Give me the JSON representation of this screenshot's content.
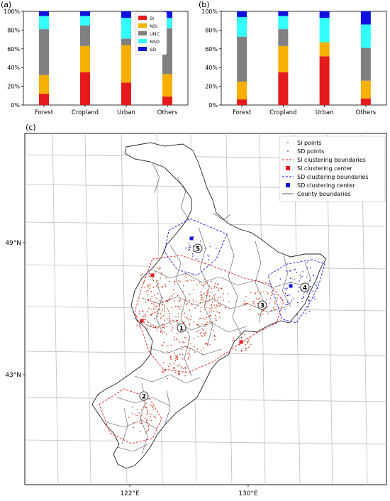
{
  "colors": {
    "SI": "#e41a1c",
    "NSI": "#f5b000",
    "UNC": "#808080",
    "NSD": "#33ffff",
    "SD": "#1010e0",
    "si_points": "#cc2200",
    "sd_points": "#1010cc",
    "county": "#333333"
  },
  "chart_data": [
    {
      "panel": "(a)",
      "type": "bar",
      "stacked": true,
      "categories": [
        "Forest",
        "Cropland",
        "Urban",
        "Others"
      ],
      "series": [
        {
          "name": "SI",
          "values": [
            12,
            35,
            24,
            9
          ]
        },
        {
          "name": "NSI",
          "values": [
            20,
            28,
            40,
            24
          ]
        },
        {
          "name": "UNC",
          "values": [
            49,
            22,
            7,
            49
          ]
        },
        {
          "name": "NSD",
          "values": [
            14,
            10,
            22,
            11
          ]
        },
        {
          "name": "SD",
          "values": [
            5,
            5,
            7,
            7
          ]
        }
      ],
      "ylim": [
        0,
        100
      ],
      "yticks": [
        "0%",
        "20%",
        "40%",
        "60%",
        "80%",
        "100%"
      ],
      "legend": "top-center"
    },
    {
      "panel": "(b)",
      "type": "bar",
      "stacked": true,
      "categories": [
        "Forest",
        "Cropland",
        "Urban",
        "Others"
      ],
      "series": [
        {
          "name": "SI",
          "values": [
            6,
            35,
            52,
            7
          ]
        },
        {
          "name": "NSI",
          "values": [
            19,
            28,
            15,
            19
          ]
        },
        {
          "name": "UNC",
          "values": [
            48,
            18,
            0,
            35
          ]
        },
        {
          "name": "NSD",
          "values": [
            21,
            14,
            26,
            25
          ]
        },
        {
          "name": "SD",
          "values": [
            6,
            5,
            7,
            14
          ]
        }
      ],
      "ylim": [
        0,
        100
      ],
      "yticks": [
        "0%",
        "20%",
        "40%",
        "60%",
        "80%",
        "100%"
      ]
    },
    {
      "panel": "(c)",
      "type": "scatter",
      "yticks": [
        "49°N",
        "43°N"
      ],
      "xticks": [
        "122°E",
        "130°E"
      ],
      "legend": [
        "SI points",
        "SD points",
        "SI clustering boundaries",
        "SI clustering center",
        "SD clustering boundaries",
        "SD clustering center",
        "County boundaries"
      ],
      "clusters": [
        "1",
        "2",
        "3",
        "4",
        "5"
      ]
    }
  ]
}
